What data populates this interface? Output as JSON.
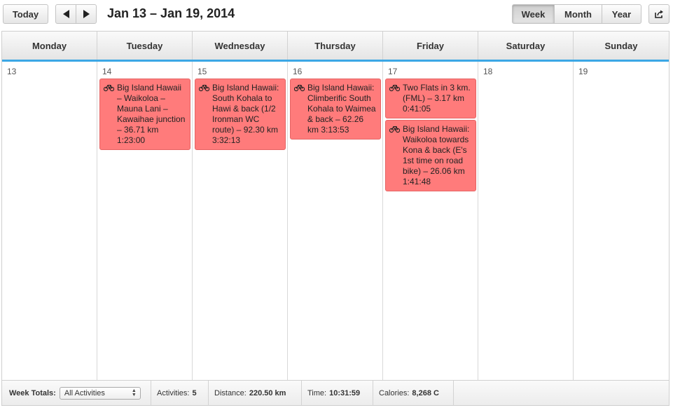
{
  "toolbar": {
    "today_label": "Today",
    "date_range": "Jan 13 – Jan 19, 2014",
    "views": [
      "Week",
      "Month",
      "Year"
    ],
    "active_view": "Week"
  },
  "days": [
    {
      "name": "Monday",
      "number": "13",
      "events": []
    },
    {
      "name": "Tuesday",
      "number": "14",
      "events": [
        {
          "text": "Big Island Hawaii – Waikoloa – Mauna Lani – Kawaihae junction – 36.71 km 1:23:00",
          "icon": "bike-icon"
        }
      ]
    },
    {
      "name": "Wednesday",
      "number": "15",
      "events": [
        {
          "text": "Big Island Hawaii: South Kohala to Hawi & back (1/2 Ironman WC route) – 92.30 km 3:32:13",
          "icon": "bike-icon"
        }
      ]
    },
    {
      "name": "Thursday",
      "number": "16",
      "events": [
        {
          "text": "Big Island Hawaii: Climberific South Kohala to Waimea & back – 62.26 km 3:13:53",
          "icon": "bike-icon"
        }
      ]
    },
    {
      "name": "Friday",
      "number": "17",
      "events": [
        {
          "text": "Two Flats in 3 km. (FML) – 3.17 km 0:41:05",
          "icon": "bike-icon"
        },
        {
          "text": "Big Island Hawaii: Waikoloa towards Kona & back (E's 1st time on road bike) – 26.06 km 1:41:48",
          "icon": "bike-icon"
        }
      ]
    },
    {
      "name": "Saturday",
      "number": "18",
      "events": []
    },
    {
      "name": "Sunday",
      "number": "19",
      "events": []
    }
  ],
  "footer": {
    "week_totals_label": "Week Totals:",
    "filter_value": "All Activities",
    "activities_label": "Activities:",
    "activities_value": "5",
    "distance_label": "Distance:",
    "distance_value": "220.50 km",
    "time_label": "Time:",
    "time_value": "10:31:59",
    "calories_label": "Calories:",
    "calories_value": "8,268 C"
  },
  "colors": {
    "event_bg": "#ff7b7b",
    "header_accent": "#3ba7e5"
  }
}
